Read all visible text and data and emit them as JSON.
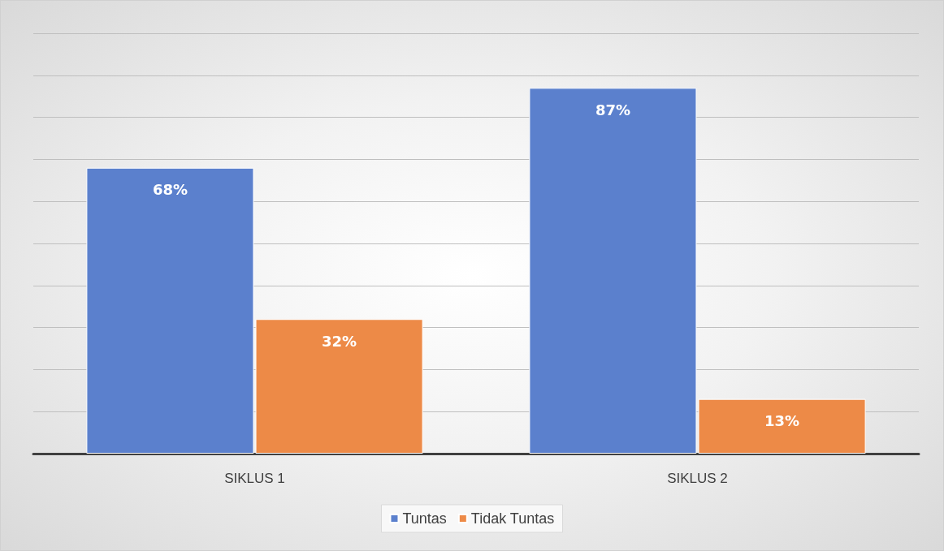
{
  "chart_data": {
    "type": "bar",
    "categories": [
      "SIKLUS 1",
      "SIKLUS 2"
    ],
    "series": [
      {
        "name": "Tuntas",
        "color": "#5b80cd",
        "values": [
          68,
          87
        ],
        "value_labels": [
          "68%",
          "87%"
        ]
      },
      {
        "name": "Tidak Tuntas",
        "color": "#ed8a47",
        "values": [
          32,
          13
        ],
        "value_labels": [
          "32%",
          "13%"
        ]
      }
    ],
    "ylim": [
      0,
      100
    ],
    "yticks": [
      0,
      10,
      20,
      30,
      40,
      50,
      60,
      70,
      80,
      90,
      100
    ],
    "grid": "y",
    "legend": "bottom",
    "tick_labels": "x"
  }
}
